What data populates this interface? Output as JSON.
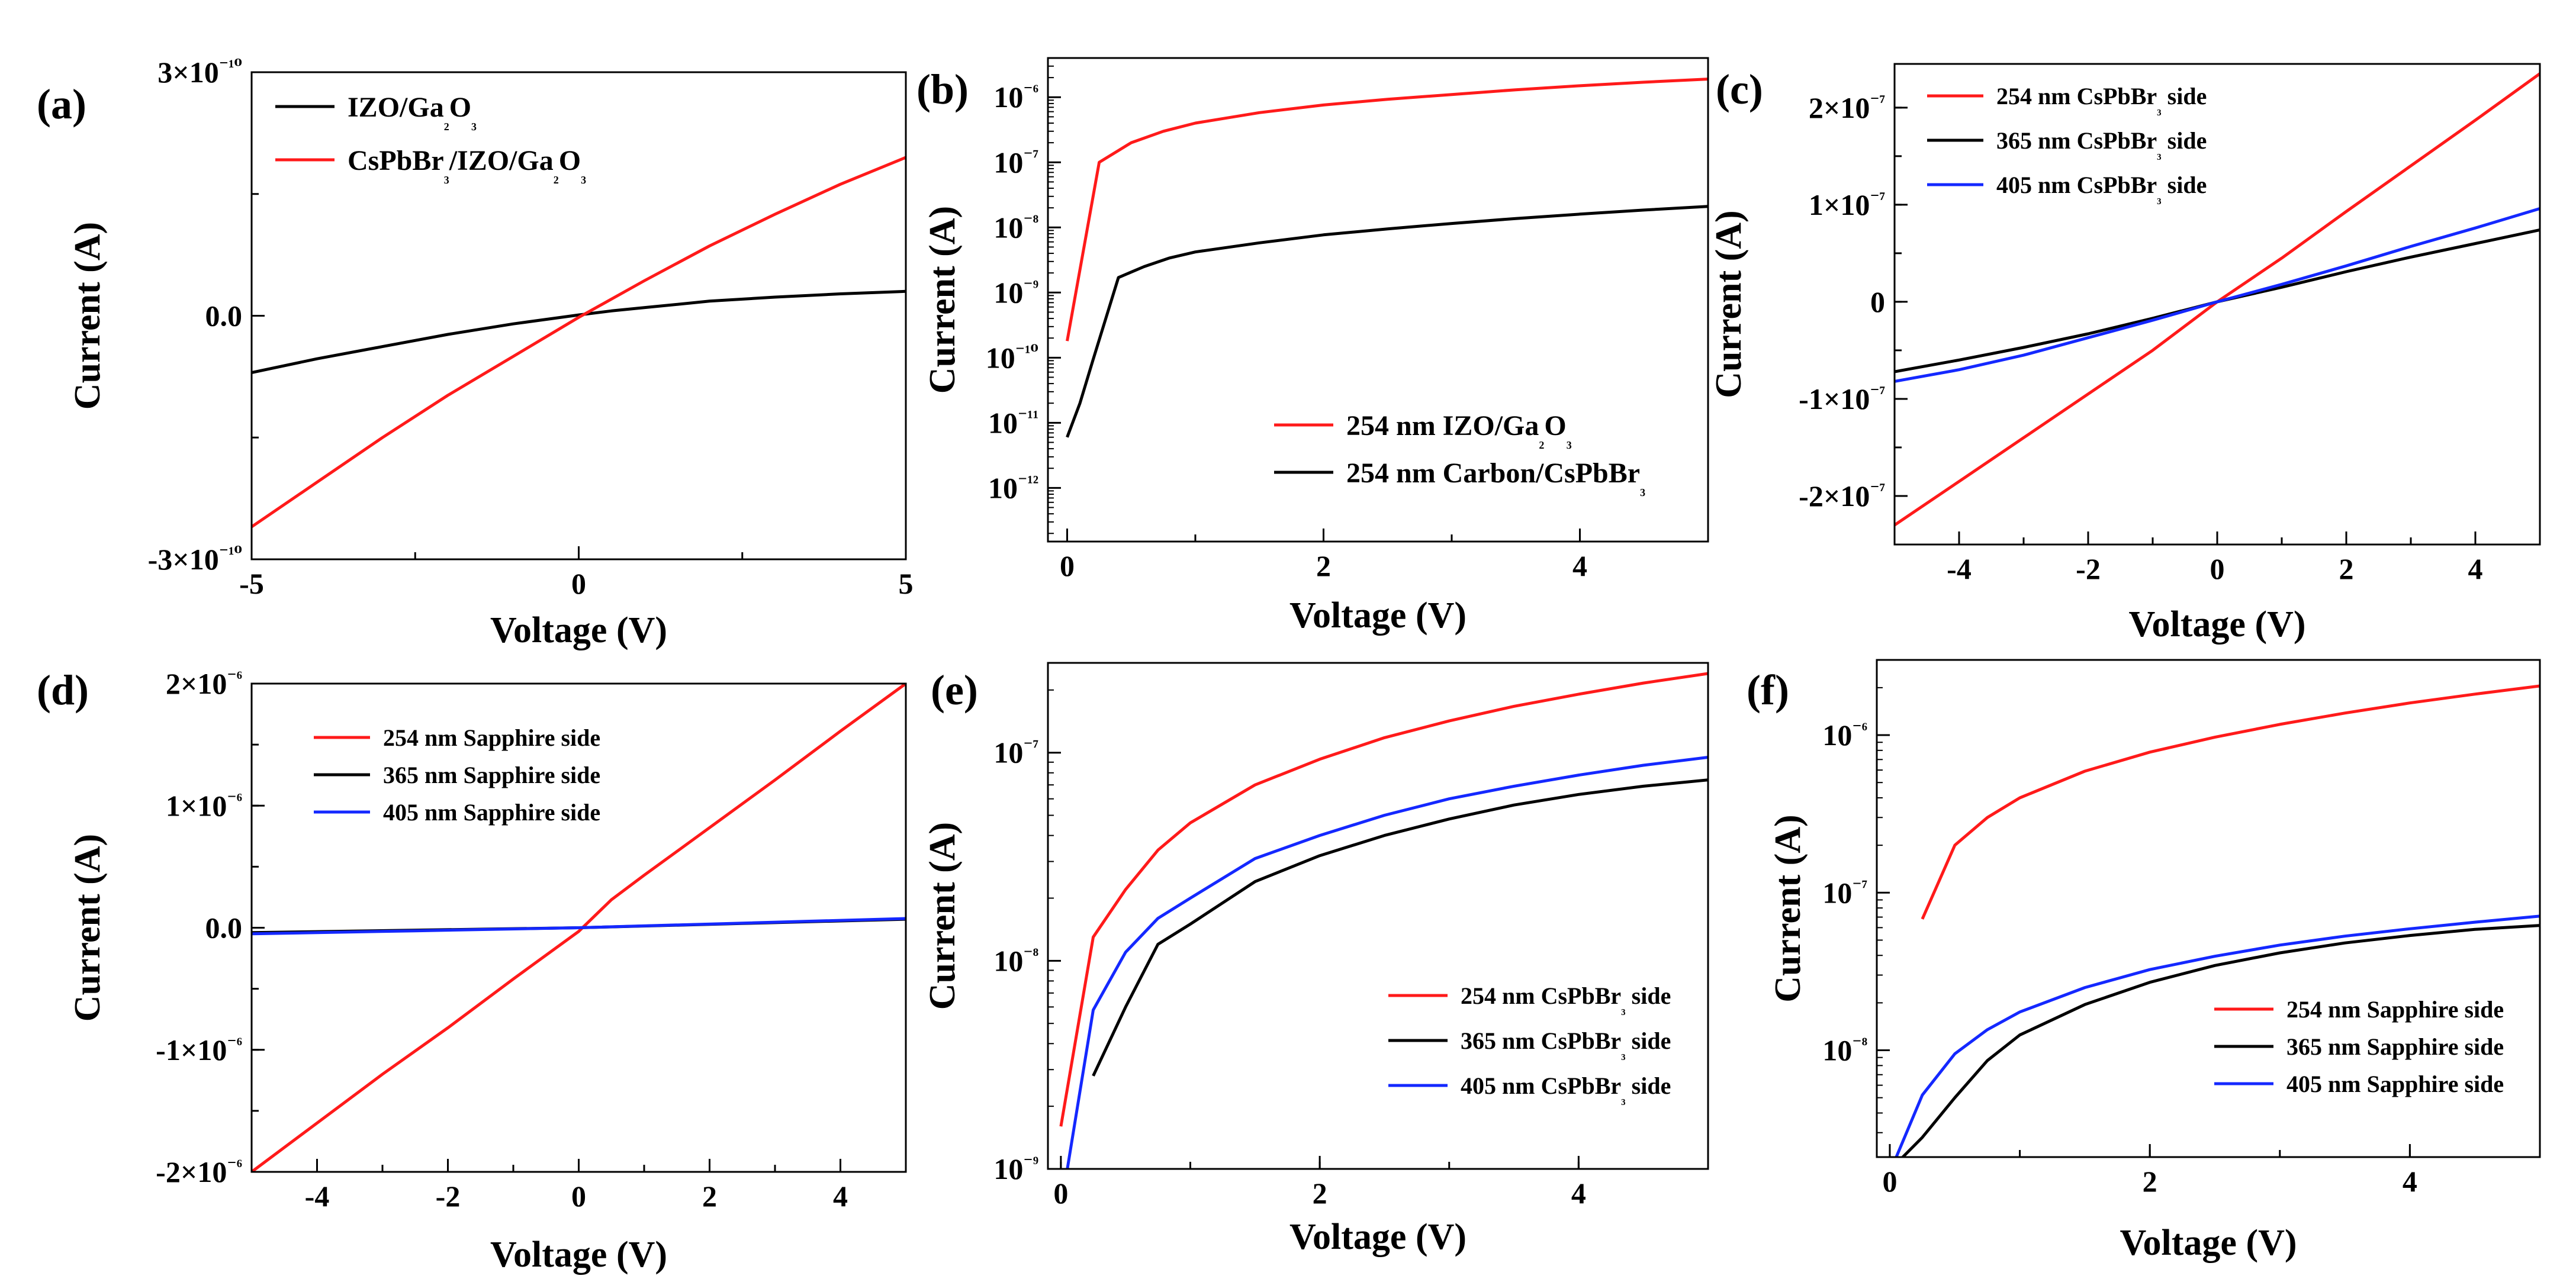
{
  "figure": {
    "colors": {
      "red": "#ff1a1a",
      "black": "#000000",
      "blue": "#1428ff"
    },
    "panels": [
      "a",
      "b",
      "c",
      "d",
      "e",
      "f"
    ]
  },
  "chart_data": [
    {
      "panel": "(a)",
      "type": "line",
      "title": "",
      "xlabel": "Voltage (V)",
      "ylabel": "Current (A)",
      "xlim": [
        -5,
        5
      ],
      "ylim": [
        -3e-10,
        3e-10
      ],
      "xticks": [
        {
          "v": -5,
          "t": "-5"
        },
        {
          "v": 0,
          "t": "0"
        },
        {
          "v": 5,
          "t": "5"
        }
      ],
      "yticks": [
        {
          "v": 3e-10,
          "t": "3×10⁻¹⁰"
        },
        {
          "v": 0,
          "t": "0.0"
        },
        {
          "v": -3e-10,
          "t": "-3×10⁻¹⁰"
        }
      ],
      "legend": {
        "position": "top-left"
      },
      "series": [
        {
          "name": "IZO/Ga₂O₃",
          "color": "#000000",
          "x": [
            -5,
            -4,
            -3,
            -2,
            -1,
            0,
            0.5,
            1,
            2,
            3,
            4,
            5
          ],
          "y": [
            -7e-11,
            -5.3e-11,
            -3.8e-11,
            -2.3e-11,
            -1e-11,
            1e-12,
            6e-12,
            1e-11,
            1.8e-11,
            2.3e-11,
            2.7e-11,
            3e-11
          ]
        },
        {
          "name": "CsPbBr₃/IZO/Ga₂O₃",
          "color": "#ff1a1a",
          "x": [
            -5,
            -4,
            -3,
            -2,
            -1,
            0,
            1,
            2,
            3,
            4,
            5
          ],
          "y": [
            -2.6e-10,
            -2.05e-10,
            -1.5e-10,
            -9.8e-11,
            -5e-11,
            -2e-12,
            4.3e-11,
            8.6e-11,
            1.25e-10,
            1.62e-10,
            1.95e-10
          ]
        }
      ]
    },
    {
      "panel": "(b)",
      "type": "line",
      "yscale": "log",
      "title": "",
      "xlabel": "Voltage (V)",
      "ylabel": "Current (A)",
      "xlim": [
        -0.15,
        5
      ],
      "ylim": [
        1.5e-13,
        4e-06
      ],
      "xticks": [
        {
          "v": 0,
          "t": "0"
        },
        {
          "v": 2,
          "t": "2"
        },
        {
          "v": 4,
          "t": "4"
        }
      ],
      "yticks": [
        {
          "v": 1e-06,
          "t": "10⁻⁶"
        },
        {
          "v": 1e-07,
          "t": "10⁻⁷"
        },
        {
          "v": 1e-08,
          "t": "10⁻⁸"
        },
        {
          "v": 1e-09,
          "t": "10⁻⁹"
        },
        {
          "v": 1e-10,
          "t": "10⁻¹⁰"
        },
        {
          "v": 1e-11,
          "t": "10⁻¹¹"
        },
        {
          "v": 1e-12,
          "t": "10⁻¹²"
        }
      ],
      "legend": {
        "position": "bottom-right"
      },
      "series": [
        {
          "name": "254 nm IZO/Ga₂O₃",
          "color": "#ff1a1a",
          "x": [
            0,
            0.25,
            0.5,
            0.75,
            1,
            1.5,
            2,
            2.5,
            3,
            3.5,
            4,
            4.5,
            5
          ],
          "y": [
            1.8e-10,
            1e-07,
            2e-07,
            3e-07,
            4e-07,
            5.8e-07,
            7.6e-07,
            9.3e-07,
            1.1e-06,
            1.3e-06,
            1.5e-06,
            1.7e-06,
            1.9e-06
          ]
        },
        {
          "name": "254 nm Carbon/CsPbBr₃",
          "color": "#000000",
          "x": [
            0,
            0.1,
            0.2,
            0.4,
            0.6,
            0.8,
            1,
            1.5,
            2,
            2.5,
            3,
            3.5,
            4,
            4.5,
            5
          ],
          "y": [
            6e-12,
            2e-11,
            9e-11,
            1.7e-09,
            2.5e-09,
            3.4e-09,
            4.2e-09,
            5.8e-09,
            7.7e-09,
            9.5e-09,
            1.15e-08,
            1.37e-08,
            1.6e-08,
            1.85e-08,
            2.1e-08
          ]
        }
      ]
    },
    {
      "panel": "(c)",
      "type": "line",
      "title": "",
      "xlabel": "Voltage (V)",
      "ylabel": "Current (A)",
      "xlim": [
        -5,
        5
      ],
      "ylim": [
        -2.5e-07,
        2.45e-07
      ],
      "xticks": [
        {
          "v": -4,
          "t": "-4"
        },
        {
          "v": -2,
          "t": "-2"
        },
        {
          "v": 0,
          "t": "0"
        },
        {
          "v": 2,
          "t": "2"
        },
        {
          "v": 4,
          "t": "4"
        }
      ],
      "yticks": [
        {
          "v": 2e-07,
          "t": "2×10⁻⁷"
        },
        {
          "v": 1e-07,
          "t": "1×10⁻⁷"
        },
        {
          "v": 0,
          "t": "0"
        },
        {
          "v": -1e-07,
          "t": "-1×10⁻⁷"
        },
        {
          "v": -2e-07,
          "t": "-2×10⁻⁷"
        }
      ],
      "legend": {
        "position": "top-left"
      },
      "series": [
        {
          "name": "254 nm CsPbBr₃ side",
          "color": "#ff1a1a",
          "x": [
            -5,
            -4,
            -3,
            -2,
            -1,
            0,
            1,
            2,
            3,
            4,
            5
          ],
          "y": [
            -2.3e-07,
            -1.85e-07,
            -1.4e-07,
            -9.5e-08,
            -5e-08,
            0,
            4.5e-08,
            9.3e-08,
            1.4e-07,
            1.87e-07,
            2.35e-07
          ]
        },
        {
          "name": "365 nm CsPbBr₃ side",
          "color": "#000000",
          "x": [
            -5,
            -4,
            -3,
            -2,
            -1,
            0,
            1,
            2,
            3,
            4,
            5
          ],
          "y": [
            -7.2e-08,
            -6e-08,
            -4.7e-08,
            -3.3e-08,
            -1.7e-08,
            0,
            1.5e-08,
            3.1e-08,
            4.6e-08,
            6e-08,
            7.4e-08
          ]
        },
        {
          "name": "405 nm CsPbBr₃ side",
          "color": "#1428ff",
          "x": [
            -5,
            -4,
            -3,
            -2,
            -1,
            0,
            1,
            2,
            3,
            4,
            5
          ],
          "y": [
            -8.2e-08,
            -7e-08,
            -5.5e-08,
            -3.7e-08,
            -1.9e-08,
            0,
            1.8e-08,
            3.7e-08,
            5.7e-08,
            7.6e-08,
            9.6e-08
          ]
        }
      ]
    },
    {
      "panel": "(d)",
      "type": "line",
      "title": "",
      "xlabel": "Voltage (V)",
      "ylabel": "Current (A)",
      "xlim": [
        -5,
        5
      ],
      "ylim": [
        -2e-06,
        2e-06
      ],
      "xticks": [
        {
          "v": -4,
          "t": "-4"
        },
        {
          "v": -2,
          "t": "-2"
        },
        {
          "v": 0,
          "t": "0"
        },
        {
          "v": 2,
          "t": "2"
        },
        {
          "v": 4,
          "t": "4"
        }
      ],
      "yticks": [
        {
          "v": 2e-06,
          "t": "2×10⁻⁶"
        },
        {
          "v": 1e-06,
          "t": "1×10⁻⁶"
        },
        {
          "v": 0,
          "t": "0.0"
        },
        {
          "v": -1e-06,
          "t": "-1×10⁻⁶"
        },
        {
          "v": -2e-06,
          "t": "-2×10⁻⁶"
        }
      ],
      "legend": {
        "position": "top-left"
      },
      "series": [
        {
          "name": "254 nm Sapphire side",
          "color": "#ff1a1a",
          "x": [
            -5,
            -4,
            -3,
            -2,
            -1,
            0,
            0.5,
            1,
            2,
            3,
            4,
            5
          ],
          "y": [
            -2e-06,
            -1.6e-06,
            -1.2e-06,
            -8.2e-07,
            -4.2e-07,
            -3e-08,
            2.3e-07,
            4.3e-07,
            8.2e-07,
            1.21e-06,
            1.61e-06,
            2e-06
          ]
        },
        {
          "name": "365 nm Sapphire side",
          "color": "#000000",
          "x": [
            -5,
            -2.5,
            0,
            2.5,
            5
          ],
          "y": [
            -4e-08,
            -2e-08,
            0,
            3.5e-08,
            7e-08
          ]
        },
        {
          "name": "405 nm Sapphire side",
          "color": "#1428ff",
          "x": [
            -5,
            -2.5,
            0,
            2.5,
            5
          ],
          "y": [
            -5e-08,
            -2.5e-08,
            0,
            3.8e-08,
            7.5e-08
          ]
        }
      ]
    },
    {
      "panel": "(e)",
      "type": "line",
      "yscale": "log",
      "title": "",
      "xlabel": "Voltage (V)",
      "ylabel": "Current (A)",
      "xlim": [
        -0.1,
        5
      ],
      "ylim": [
        1e-09,
        2.7e-07
      ],
      "xticks": [
        {
          "v": 0,
          "t": "0"
        },
        {
          "v": 2,
          "t": "2"
        },
        {
          "v": 4,
          "t": "4"
        }
      ],
      "yticks": [
        {
          "v": 1e-07,
          "t": "10⁻⁷"
        },
        {
          "v": 1e-08,
          "t": "10⁻⁸"
        },
        {
          "v": 1e-09,
          "t": "10⁻⁹"
        }
      ],
      "legend": {
        "position": "bottom-right"
      },
      "series": [
        {
          "name": "254 nm CsPbBr₃ side",
          "color": "#ff1a1a",
          "x": [
            0,
            0.25,
            0.5,
            0.75,
            1,
            1.5,
            2,
            2.5,
            3,
            3.5,
            4,
            4.5,
            5
          ],
          "y": [
            1.6e-09,
            1.3e-08,
            2.2e-08,
            3.4e-08,
            4.6e-08,
            7e-08,
            9.3e-08,
            1.18e-07,
            1.42e-07,
            1.67e-07,
            1.91e-07,
            2.16e-07,
            2.4e-07
          ]
        },
        {
          "name": "365 nm CsPbBr₃ side",
          "color": "#000000",
          "x": [
            0.25,
            0.5,
            0.75,
            1,
            1.5,
            2,
            2.5,
            3,
            3.5,
            4,
            4.5,
            5
          ],
          "y": [
            2.8e-09,
            6e-09,
            1.2e-08,
            1.5e-08,
            2.4e-08,
            3.2e-08,
            4e-08,
            4.8e-08,
            5.6e-08,
            6.3e-08,
            6.9e-08,
            7.4e-08
          ]
        },
        {
          "name": "405 nm CsPbBr₃ side",
          "color": "#1428ff",
          "x": [
            0.05,
            0.25,
            0.5,
            0.75,
            1,
            1.5,
            2,
            2.5,
            3,
            3.5,
            4,
            4.5,
            5
          ],
          "y": [
            1e-09,
            5.8e-09,
            1.1e-08,
            1.6e-08,
            2e-08,
            3.1e-08,
            4e-08,
            5e-08,
            6e-08,
            6.9e-08,
            7.8e-08,
            8.7e-08,
            9.5e-08
          ]
        }
      ]
    },
    {
      "panel": "(f)",
      "type": "line",
      "yscale": "log",
      "title": "",
      "xlabel": "Voltage (V)",
      "ylabel": "Current (A)",
      "xlim": [
        -0.1,
        5
      ],
      "ylim": [
        2.1e-09,
        3e-06
      ],
      "xticks": [
        {
          "v": 0,
          "t": "0"
        },
        {
          "v": 2,
          "t": "2"
        },
        {
          "v": 4,
          "t": "4"
        }
      ],
      "yticks": [
        {
          "v": 1e-06,
          "t": "10⁻⁶"
        },
        {
          "v": 1e-07,
          "t": "10⁻⁷"
        },
        {
          "v": 1e-08,
          "t": "10⁻⁸"
        }
      ],
      "legend": {
        "position": "bottom-right"
      },
      "series": [
        {
          "name": "254 nm Sapphire side",
          "color": "#ff1a1a",
          "x": [
            0.25,
            0.5,
            0.75,
            1,
            1.5,
            2,
            2.5,
            3,
            3.5,
            4,
            4.5,
            5
          ],
          "y": [
            6.8e-08,
            2e-07,
            3e-07,
            4e-07,
            5.9e-07,
            7.8e-07,
            9.7e-07,
            1.17e-06,
            1.38e-06,
            1.6e-06,
            1.82e-06,
            2.05e-06
          ]
        },
        {
          "name": "365 nm Sapphire side",
          "color": "#000000",
          "x": [
            0.1,
            0.25,
            0.5,
            0.75,
            1,
            1.5,
            2,
            2.5,
            3,
            3.5,
            4,
            4.5,
            5
          ],
          "y": [
            2.1e-09,
            2.8e-09,
            5e-09,
            8.6e-09,
            1.25e-08,
            1.95e-08,
            2.7e-08,
            3.45e-08,
            4.15e-08,
            4.8e-08,
            5.35e-08,
            5.85e-08,
            6.2e-08
          ]
        },
        {
          "name": "405 nm Sapphire side",
          "color": "#1428ff",
          "x": [
            0.05,
            0.25,
            0.5,
            0.75,
            1,
            1.5,
            2,
            2.5,
            3,
            3.5,
            4,
            4.5,
            5
          ],
          "y": [
            2.1e-09,
            5.2e-09,
            9.5e-09,
            1.35e-08,
            1.75e-08,
            2.5e-08,
            3.25e-08,
            3.95e-08,
            4.65e-08,
            5.3e-08,
            5.9e-08,
            6.5e-08,
            7.1e-08
          ]
        }
      ]
    }
  ]
}
